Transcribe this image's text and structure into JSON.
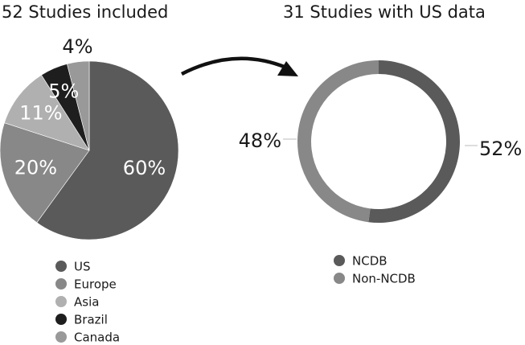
{
  "chart_data": [
    {
      "type": "pie",
      "title": "52 Studies included",
      "categories": [
        "US",
        "Europe",
        "Asia",
        "Brazil",
        "Canada"
      ],
      "values": [
        60,
        20,
        11,
        5,
        4
      ],
      "labels": [
        "60%",
        "20%",
        "11%",
        "5%",
        "4%"
      ],
      "colors": [
        "#5a5a5a",
        "#888888",
        "#b0b0b0",
        "#1e1e1e",
        "#999999"
      ],
      "label_colors": [
        "#ffffff",
        "#ffffff",
        "#ffffff",
        "#ffffff",
        "#1a1a1a"
      ],
      "legend": "bottom"
    },
    {
      "type": "pie",
      "donut": true,
      "title": "31 Studies with US data",
      "categories": [
        "NCDB",
        "Non-NCDB"
      ],
      "values": [
        52,
        48
      ],
      "labels": [
        "52%",
        "48%"
      ],
      "colors": [
        "#5a5a5a",
        "#888888"
      ],
      "legend": "bottom"
    }
  ],
  "arrow": {
    "icon": "curved-arrow-icon"
  }
}
